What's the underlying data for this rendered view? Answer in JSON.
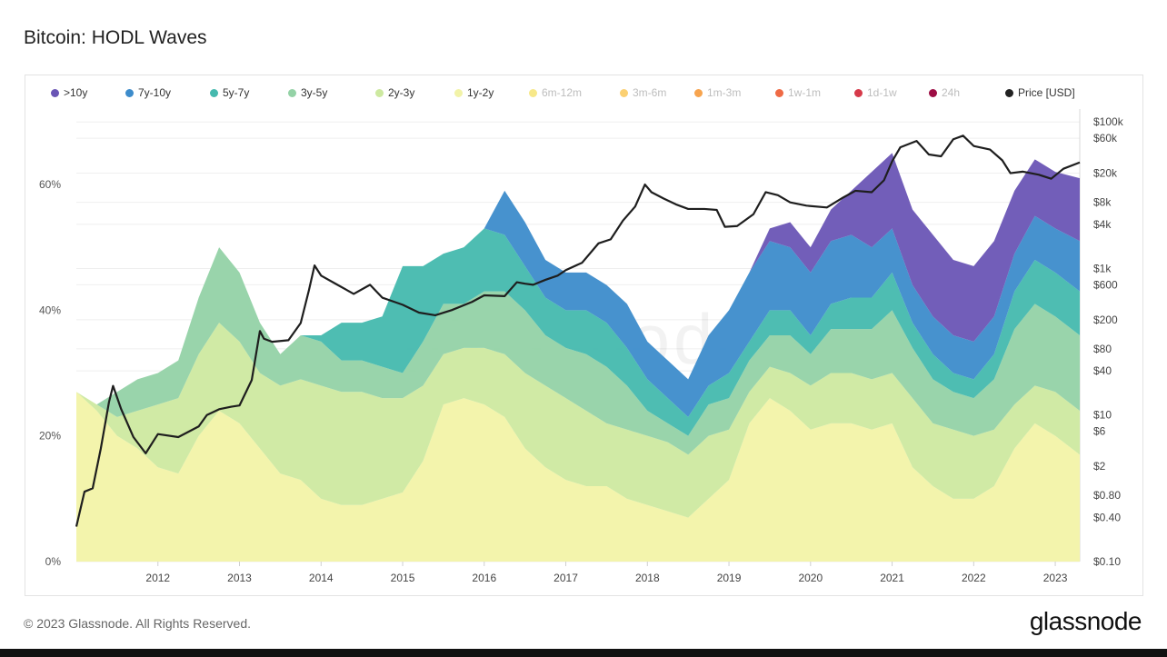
{
  "page": {
    "title": "Bitcoin: HODL Waves",
    "footer": "© 2023 Glassnode. All Rights Reserved.",
    "brand": "glassnode",
    "watermark": "glassnode"
  },
  "legend": [
    {
      "label": ">10y",
      "color": "#6a55b5",
      "active": true
    },
    {
      "label": "7y-10y",
      "color": "#3d8ccb",
      "active": true
    },
    {
      "label": "5y-7y",
      "color": "#45b9ae",
      "active": true
    },
    {
      "label": "3y-5y",
      "color": "#94d2a6",
      "active": true
    },
    {
      "label": "2y-3y",
      "color": "#cde9a0",
      "active": true
    },
    {
      "label": "1y-2y",
      "color": "#f2f3a8",
      "active": true
    },
    {
      "label": "6m-12m",
      "color": "#f7e889",
      "active": false
    },
    {
      "label": "3m-6m",
      "color": "#fbd072",
      "active": false
    },
    {
      "label": "1m-3m",
      "color": "#f7a44e",
      "active": false
    },
    {
      "label": "1w-1m",
      "color": "#ef6a45",
      "active": false
    },
    {
      "label": "1d-1w",
      "color": "#d63a4a",
      "active": false
    },
    {
      "label": "24h",
      "color": "#9d0e44",
      "active": false
    },
    {
      "label": "Price [USD]",
      "color": "#222222",
      "active": true
    }
  ],
  "chart_data": {
    "type": "area",
    "title": "Bitcoin: HODL Waves",
    "stacked": true,
    "x_unit": "year",
    "x_range": [
      2011.0,
      2023.3
    ],
    "x_ticks": [
      {
        "value": 2012,
        "label": "2012"
      },
      {
        "value": 2013,
        "label": "2013"
      },
      {
        "value": 2014,
        "label": "2014"
      },
      {
        "value": 2015,
        "label": "2015"
      },
      {
        "value": 2016,
        "label": "2016"
      },
      {
        "value": 2017,
        "label": "2017"
      },
      {
        "value": 2018,
        "label": "2018"
      },
      {
        "value": 2019,
        "label": "2019"
      },
      {
        "value": 2020,
        "label": "2020"
      },
      {
        "value": 2021,
        "label": "2021"
      },
      {
        "value": 2022,
        "label": "2022"
      },
      {
        "value": 2023,
        "label": "2023"
      }
    ],
    "y_left": {
      "unit": "percent",
      "range": [
        0,
        72
      ],
      "ticks": [
        {
          "value": 0,
          "label": "0%"
        },
        {
          "value": 20,
          "label": "20%"
        },
        {
          "value": 40,
          "label": "40%"
        },
        {
          "value": 60,
          "label": "60%"
        }
      ]
    },
    "y_right": {
      "unit": "USD",
      "scale": "log",
      "range": [
        0.1,
        150000
      ],
      "ticks": [
        {
          "value": 100000,
          "label": "$100k"
        },
        {
          "value": 60000,
          "label": "$60k"
        },
        {
          "value": 20000,
          "label": "$20k"
        },
        {
          "value": 8000,
          "label": "$8k"
        },
        {
          "value": 4000,
          "label": "$4k"
        },
        {
          "value": 1000,
          "label": "$1k"
        },
        {
          "value": 600,
          "label": "$600"
        },
        {
          "value": 200,
          "label": "$200"
        },
        {
          "value": 80,
          "label": "$80"
        },
        {
          "value": 40,
          "label": "$40"
        },
        {
          "value": 10,
          "label": "$10"
        },
        {
          "value": 6,
          "label": "$6"
        },
        {
          "value": 2,
          "label": "$2"
        },
        {
          "value": 0.8,
          "label": "$0.80"
        },
        {
          "value": 0.4,
          "label": "$0.40"
        },
        {
          "value": 0.1,
          "label": "$0.10"
        }
      ]
    },
    "x": [
      2011.0,
      2011.25,
      2011.5,
      2011.75,
      2012.0,
      2012.25,
      2012.5,
      2012.75,
      2013.0,
      2013.25,
      2013.5,
      2013.75,
      2014.0,
      2014.25,
      2014.5,
      2014.75,
      2015.0,
      2015.25,
      2015.5,
      2015.75,
      2016.0,
      2016.25,
      2016.5,
      2016.75,
      2017.0,
      2017.25,
      2017.5,
      2017.75,
      2018.0,
      2018.25,
      2018.5,
      2018.75,
      2019.0,
      2019.25,
      2019.5,
      2019.75,
      2020.0,
      2020.25,
      2020.5,
      2020.75,
      2021.0,
      2021.25,
      2021.5,
      2021.75,
      2022.0,
      2022.25,
      2022.5,
      2022.75,
      2023.0,
      2023.3
    ],
    "series": [
      {
        "name": "1y-2y",
        "values": [
          27,
          24,
          20,
          18,
          15,
          14,
          20,
          24,
          22,
          18,
          14,
          13,
          10,
          9,
          9,
          10,
          11,
          16,
          25,
          26,
          25,
          23,
          18,
          15,
          13,
          12,
          12,
          10,
          9,
          8,
          7,
          10,
          13,
          22,
          26,
          24,
          21,
          22,
          22,
          21,
          22,
          15,
          12,
          10,
          10,
          12,
          18,
          22,
          20,
          17
        ]
      },
      {
        "name": "2y-3y",
        "values": [
          0,
          1,
          3,
          6,
          10,
          12,
          13,
          14,
          13,
          12,
          14,
          16,
          18,
          18,
          18,
          16,
          15,
          12,
          8,
          8,
          9,
          10,
          12,
          13,
          13,
          12,
          10,
          11,
          11,
          11,
          10,
          10,
          8,
          5,
          5,
          6,
          7,
          8,
          8,
          8,
          8,
          11,
          10,
          11,
          10,
          9,
          7,
          6,
          7,
          7
        ]
      },
      {
        "name": "3y-5y",
        "values": [
          0,
          0,
          4,
          5,
          5,
          6,
          9,
          12,
          11,
          8,
          5,
          7,
          7,
          5,
          5,
          5,
          4,
          7,
          8,
          7,
          9,
          10,
          10,
          8,
          8,
          9,
          9,
          7,
          4,
          3,
          3,
          5,
          5,
          5,
          5,
          6,
          5,
          7,
          7,
          8,
          10,
          8,
          7,
          6,
          6,
          8,
          12,
          13,
          12,
          12
        ]
      },
      {
        "name": "5y-7y",
        "values": [
          0,
          0,
          0,
          0,
          0,
          0,
          0,
          0,
          0,
          0,
          0,
          0,
          1,
          6,
          6,
          8,
          17,
          12,
          8,
          9,
          10,
          9,
          7,
          6,
          6,
          7,
          7,
          6,
          5,
          4,
          3,
          3,
          4,
          3,
          4,
          4,
          3,
          4,
          5,
          5,
          6,
          4,
          4,
          3,
          3,
          4,
          6,
          7,
          7,
          7
        ]
      },
      {
        "name": "7y-10y",
        "values": [
          0,
          0,
          0,
          0,
          0,
          0,
          0,
          0,
          0,
          0,
          0,
          0,
          0,
          0,
          0,
          0,
          0,
          0,
          0,
          0,
          0,
          7,
          7,
          6,
          6,
          6,
          6,
          7,
          6,
          6,
          6,
          8,
          10,
          11,
          11,
          10,
          10,
          10,
          10,
          8,
          7,
          6,
          6,
          6,
          6,
          6,
          6,
          7,
          7,
          8
        ]
      },
      {
        "name": ">10y",
        "values": [
          0,
          0,
          0,
          0,
          0,
          0,
          0,
          0,
          0,
          0,
          0,
          0,
          0,
          0,
          0,
          0,
          0,
          0,
          0,
          0,
          0,
          0,
          0,
          0,
          0,
          0,
          0,
          0,
          0,
          0,
          0,
          0,
          0,
          0,
          2,
          4,
          4,
          5,
          7,
          12,
          12,
          12,
          13,
          12,
          12,
          12,
          10,
          9,
          9,
          10
        ]
      }
    ],
    "price_series": {
      "name": "Price [USD]",
      "x": [
        2011.0,
        2011.1,
        2011.2,
        2011.3,
        2011.4,
        2011.45,
        2011.55,
        2011.7,
        2011.85,
        2011.95,
        2012.0,
        2012.25,
        2012.5,
        2012.6,
        2012.75,
        2012.9,
        2013.0,
        2013.15,
        2013.25,
        2013.3,
        2013.4,
        2013.6,
        2013.75,
        2013.85,
        2013.92,
        2014.0,
        2014.2,
        2014.4,
        2014.6,
        2014.75,
        2014.9,
        2015.0,
        2015.2,
        2015.4,
        2015.6,
        2015.85,
        2016.0,
        2016.25,
        2016.4,
        2016.5,
        2016.6,
        2016.75,
        2016.9,
        2017.0,
        2017.2,
        2017.4,
        2017.55,
        2017.7,
        2017.85,
        2017.97,
        2018.05,
        2018.2,
        2018.35,
        2018.5,
        2018.7,
        2018.85,
        2018.95,
        2019.1,
        2019.3,
        2019.45,
        2019.6,
        2019.75,
        2019.95,
        2020.2,
        2020.4,
        2020.55,
        2020.75,
        2020.9,
        2021.0,
        2021.1,
        2021.3,
        2021.45,
        2021.6,
        2021.75,
        2021.87,
        2022.0,
        2022.2,
        2022.35,
        2022.45,
        2022.6,
        2022.8,
        2022.95,
        2023.1,
        2023.3
      ],
      "values": [
        0.3,
        0.9,
        1.0,
        3.5,
        15,
        25,
        12,
        5,
        3,
        4.5,
        5.5,
        5,
        7,
        10,
        12,
        13,
        13.5,
        30,
        140,
        110,
        100,
        105,
        180,
        500,
        1100,
        800,
        600,
        450,
        600,
        400,
        350,
        320,
        250,
        230,
        270,
        350,
        430,
        420,
        650,
        620,
        600,
        700,
        800,
        950,
        1200,
        2200,
        2500,
        4500,
        7000,
        14000,
        11000,
        9000,
        7500,
        6500,
        6500,
        6300,
        3700,
        3800,
        5500,
        11000,
        10000,
        8000,
        7200,
        6800,
        9300,
        11500,
        11000,
        16000,
        29000,
        45000,
        55000,
        36000,
        34000,
        58000,
        65000,
        47000,
        42000,
        30000,
        20000,
        21000,
        19000,
        16800,
        23000,
        28000
      ]
    }
  }
}
